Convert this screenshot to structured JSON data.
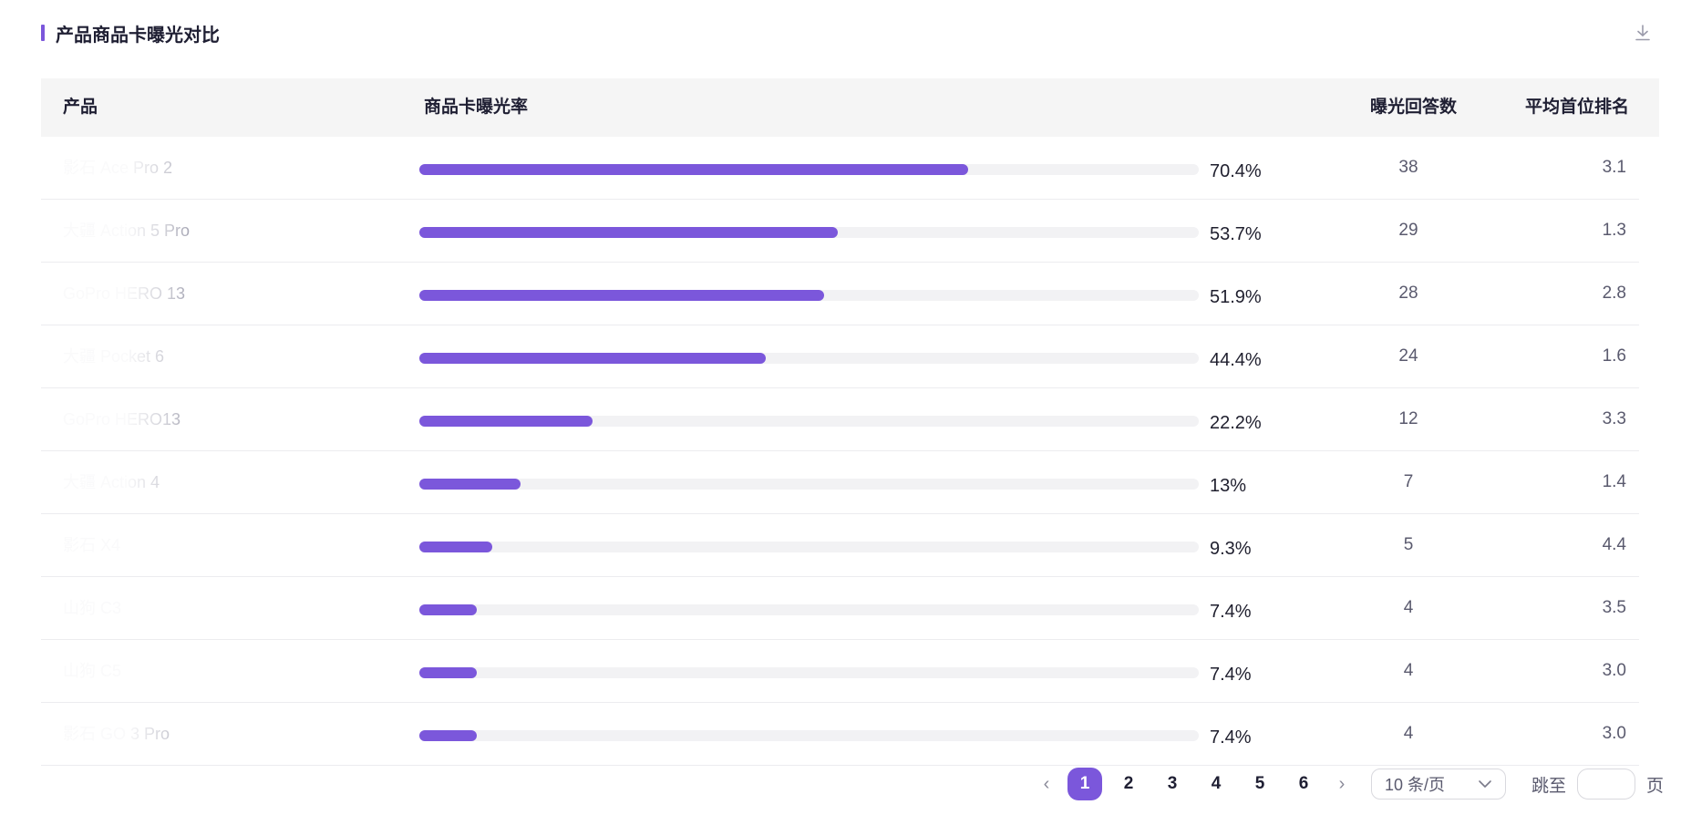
{
  "header": {
    "title": "产品商品卡曝光对比",
    "download_icon": "download-icon"
  },
  "columns": {
    "product": "产品",
    "rate": "商品卡曝光率",
    "count": "曝光回答数",
    "rank": "平均首位排名"
  },
  "rows": [
    {
      "product": "影石 Ace Pro 2",
      "rate": 0.704,
      "rate_label": "70.4%",
      "count": "38",
      "rank": "3.1"
    },
    {
      "product": "大疆 Action 5 Pro",
      "rate": 0.537,
      "rate_label": "53.7%",
      "count": "29",
      "rank": "1.3"
    },
    {
      "product": "GoPro HERO 13",
      "rate": 0.519,
      "rate_label": "51.9%",
      "count": "28",
      "rank": "2.8"
    },
    {
      "product": "大疆 Pocket 6",
      "rate": 0.444,
      "rate_label": "44.4%",
      "count": "24",
      "rank": "1.6"
    },
    {
      "product": "GoPro HERO13",
      "rate": 0.222,
      "rate_label": "22.2%",
      "count": "12",
      "rank": "3.3"
    },
    {
      "product": "大疆 Action 4",
      "rate": 0.13,
      "rate_label": "13%",
      "count": "7",
      "rank": "1.4"
    },
    {
      "product": "影石 X4",
      "rate": 0.093,
      "rate_label": "9.3%",
      "count": "5",
      "rank": "4.4"
    },
    {
      "product": "山狗 C3",
      "rate": 0.074,
      "rate_label": "7.4%",
      "count": "4",
      "rank": "3.5"
    },
    {
      "product": "山狗 C5",
      "rate": 0.074,
      "rate_label": "7.4%",
      "count": "4",
      "rank": "3.0"
    },
    {
      "product": "影石 GO 3 Pro",
      "rate": 0.074,
      "rate_label": "7.4%",
      "count": "4",
      "rank": "3.0"
    }
  ],
  "pagination": {
    "prev_icon": "chevron-left-icon",
    "next_icon": "chevron-right-icon",
    "pages": [
      "1",
      "2",
      "3",
      "4",
      "5",
      "6"
    ],
    "current": "1",
    "page_size": "10 条/页",
    "jump_label": "跳至",
    "jump_value": "",
    "page_suffix": "页"
  },
  "colors": {
    "accent": "#7b57db",
    "track": "#f2f2f4",
    "header_bg": "#f5f5f5"
  }
}
